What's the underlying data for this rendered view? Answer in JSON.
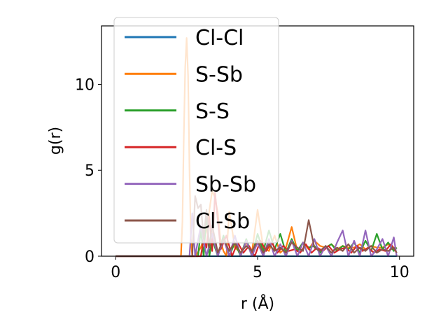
{
  "chart_data": {
    "type": "line",
    "title": "",
    "xlabel": "r (Å)",
    "ylabel": "g(r)",
    "xlim": [
      -0.5,
      10.5
    ],
    "ylim": [
      0,
      13.4
    ],
    "xticks": [
      0,
      5,
      10
    ],
    "yticks": [
      0,
      5,
      10
    ],
    "grid": false,
    "legend": {
      "placement": "top-left",
      "entries": [
        "Cl-Cl",
        "S-Sb",
        "S-S",
        "Cl-S",
        "Sb-Sb",
        "Cl-Sb"
      ]
    },
    "series": [
      {
        "name": "Cl-Cl",
        "color": "#1f77b4",
        "x": [
          0.0,
          2.2,
          3.6,
          5.0,
          6.0,
          7.0,
          8.0,
          9.0,
          9.9
        ],
        "y": [
          0,
          0,
          0,
          0,
          0,
          0,
          0,
          0,
          0
        ]
      },
      {
        "name": "S-Sb",
        "color": "#ff7f0e",
        "x": [
          0.0,
          2.3,
          2.35,
          2.4,
          2.45,
          2.5,
          2.55,
          2.6,
          2.65,
          2.7,
          2.8,
          3.0,
          3.2,
          3.4,
          3.5,
          3.6,
          3.7,
          3.8,
          3.9,
          4.0,
          4.2,
          4.4,
          4.6,
          4.8,
          5.0,
          5.2,
          5.4,
          5.6,
          5.8,
          6.0,
          6.2,
          6.4,
          6.6,
          6.8,
          7.0,
          7.2,
          7.4,
          7.6,
          7.8,
          8.0,
          8.2,
          8.4,
          8.6,
          8.8,
          9.0,
          9.2,
          9.4,
          9.6,
          9.8,
          9.9
        ],
        "y": [
          0,
          0,
          2.0,
          7.0,
          11.0,
          12.7,
          10.5,
          5.0,
          1.0,
          0,
          0,
          0.5,
          1.5,
          3.8,
          3.4,
          2.5,
          0.8,
          0.3,
          0,
          2.6,
          0.5,
          0.2,
          0.8,
          0.2,
          2.7,
          0.5,
          0.3,
          1.2,
          0.2,
          0.5,
          1.7,
          0.3,
          0.8,
          0.4,
          0.9,
          0.6,
          0.5,
          0.7,
          0.4,
          0.6,
          0.5,
          0.5,
          0.7,
          0.4,
          0.6,
          0.5,
          0.5,
          0.7,
          0.4,
          0.5
        ]
      },
      {
        "name": "S-S",
        "color": "#2ca02c",
        "x": [
          0.0,
          2.9,
          3.0,
          3.1,
          3.2,
          3.3,
          3.4,
          3.6,
          3.8,
          4.0,
          4.2,
          4.4,
          4.6,
          4.8,
          5.0,
          5.2,
          5.4,
          5.6,
          5.8,
          6.0,
          6.2,
          6.4,
          6.6,
          6.8,
          7.0,
          7.2,
          7.4,
          7.6,
          7.8,
          8.0,
          8.2,
          8.4,
          8.6,
          8.8,
          9.0,
          9.2,
          9.4,
          9.6,
          9.8,
          9.9
        ],
        "y": [
          0,
          0,
          1.5,
          0,
          2.5,
          0,
          1.0,
          0,
          1.2,
          0,
          0.8,
          0,
          1.0,
          0,
          1.3,
          0.3,
          1.5,
          0.4,
          1.3,
          0.2,
          1.0,
          0.3,
          0.8,
          0.5,
          0.6,
          0.2,
          0.5,
          0.7,
          0.3,
          0.6,
          0.4,
          0.8,
          0.2,
          0.9,
          0.3,
          1.3,
          0.4,
          0.8,
          0.3,
          0.5
        ]
      },
      {
        "name": "Cl-S",
        "color": "#d62728",
        "x": [
          0.0,
          3.0,
          3.1,
          3.2,
          3.3,
          3.4,
          3.5,
          3.7,
          3.9,
          4.1,
          4.3,
          4.5,
          4.7,
          4.9,
          5.1,
          5.3,
          5.5,
          5.7,
          5.9,
          6.1,
          6.3,
          6.5,
          6.7,
          6.9,
          7.1,
          7.3,
          7.5,
          7.7,
          7.9,
          8.1,
          8.3,
          8.5,
          8.7,
          8.9,
          9.1,
          9.3,
          9.5,
          9.7,
          9.9
        ],
        "y": [
          0,
          0,
          1.0,
          0.5,
          2.3,
          0.3,
          3.7,
          0.4,
          1.2,
          0,
          0.8,
          0.2,
          0.6,
          0,
          0.9,
          0.3,
          0.8,
          0.2,
          0.6,
          0.3,
          0.4,
          0.2,
          0.7,
          0.2,
          0.5,
          0.3,
          0.6,
          0.2,
          0.4,
          0.5,
          0.2,
          0.6,
          0.3,
          0.5,
          0.2,
          0.4,
          0.3,
          0.7,
          0.2
        ]
      },
      {
        "name": "Sb-Sb",
        "color": "#9467bd",
        "x": [
          0.0,
          2.6,
          2.7,
          2.8,
          3.0,
          3.2,
          3.4,
          3.6,
          3.8,
          4.0,
          4.2,
          4.4,
          4.6,
          4.8,
          5.0,
          5.2,
          5.4,
          5.6,
          5.8,
          6.0,
          6.2,
          6.4,
          6.6,
          6.8,
          7.0,
          7.2,
          7.4,
          7.6,
          7.8,
          8.0,
          8.2,
          8.4,
          8.6,
          8.8,
          9.0,
          9.2,
          9.4,
          9.6,
          9.8,
          9.9
        ],
        "y": [
          0,
          0,
          2.5,
          0,
          1.8,
          0,
          1.3,
          0,
          1.0,
          0,
          1.2,
          0,
          0.9,
          0,
          0.8,
          0,
          1.0,
          0,
          0.7,
          0,
          0.9,
          0,
          0.8,
          0,
          1.0,
          0,
          0.6,
          0,
          0.8,
          1.5,
          0,
          0.9,
          0,
          1.5,
          0,
          0.4,
          1.0,
          0,
          1.1,
          0
        ]
      },
      {
        "name": "Cl-Sb",
        "color": "#8c564b",
        "x": [
          0.0,
          2.7,
          2.8,
          2.9,
          3.0,
          3.1,
          3.2,
          3.3,
          3.4,
          3.6,
          3.8,
          4.0,
          4.2,
          4.4,
          4.6,
          4.8,
          5.0,
          5.2,
          5.4,
          5.6,
          5.8,
          6.0,
          6.2,
          6.4,
          6.6,
          6.8,
          7.0,
          7.2,
          7.4,
          7.6,
          7.8,
          8.0,
          8.2,
          8.4,
          8.6,
          8.8,
          9.0,
          9.2,
          9.4,
          9.6,
          9.8,
          9.9
        ],
        "y": [
          0,
          0,
          3.5,
          2.8,
          3.0,
          1.0,
          2.7,
          0.5,
          1.8,
          0.2,
          1.0,
          0.3,
          0.8,
          0.2,
          0.6,
          0.3,
          0.9,
          0.2,
          0.7,
          0.3,
          0.5,
          0.2,
          0.8,
          0.5,
          0.3,
          2.1,
          0.5,
          0.3,
          0.6,
          0.2,
          0.5,
          0.3,
          0.7,
          0.2,
          0.5,
          0.3,
          0.6,
          0.2,
          0.4,
          0.3,
          0.5,
          0.2
        ]
      }
    ]
  }
}
